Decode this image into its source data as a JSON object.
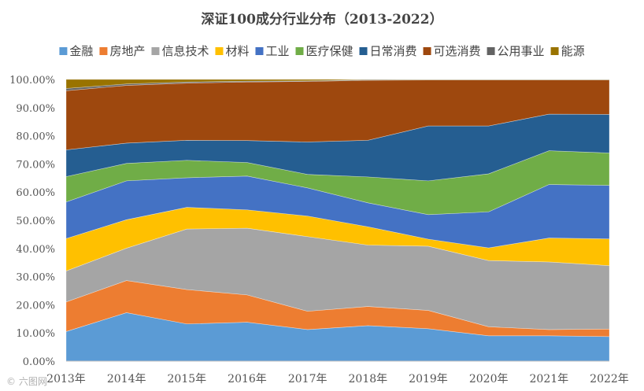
{
  "watermark": "© 六图网",
  "chart_data": {
    "type": "area",
    "stacked": true,
    "title": "深证100成分行业分布（2013-2022）",
    "categories": [
      "2013年",
      "2014年",
      "2015年",
      "2016年",
      "2017年",
      "2018年",
      "2019年",
      "2020年",
      "2021年",
      "2022年"
    ],
    "ylim": [
      0,
      1
    ],
    "yticks": [
      "0.00%",
      "10.00%",
      "20.00%",
      "30.00%",
      "40.00%",
      "50.00%",
      "60.00%",
      "70.00%",
      "80.00%",
      "90.00%",
      "100.00%"
    ],
    "grid": true,
    "legend_position": "top",
    "series": [
      {
        "name": "金融",
        "color": "#5b9bd5",
        "values": [
          0.105,
          0.172,
          0.132,
          0.138,
          0.112,
          0.126,
          0.115,
          0.09,
          0.09,
          0.087
        ]
      },
      {
        "name": "房地产",
        "color": "#ed7d31",
        "values": [
          0.105,
          0.114,
          0.122,
          0.097,
          0.065,
          0.068,
          0.065,
          0.032,
          0.022,
          0.027
        ]
      },
      {
        "name": "信息技术",
        "color": "#a5a5a5",
        "values": [
          0.11,
          0.115,
          0.215,
          0.237,
          0.265,
          0.218,
          0.228,
          0.235,
          0.24,
          0.225
        ]
      },
      {
        "name": "材料",
        "color": "#ffc000",
        "values": [
          0.115,
          0.101,
          0.077,
          0.065,
          0.073,
          0.065,
          0.025,
          0.045,
          0.085,
          0.095
        ]
      },
      {
        "name": "工业",
        "color": "#4472c4",
        "values": [
          0.13,
          0.138,
          0.105,
          0.12,
          0.1,
          0.085,
          0.087,
          0.128,
          0.19,
          0.19
        ]
      },
      {
        "name": "医疗保健",
        "color": "#70ad47",
        "values": [
          0.09,
          0.062,
          0.062,
          0.048,
          0.048,
          0.092,
          0.12,
          0.135,
          0.12,
          0.115
        ]
      },
      {
        "name": "日常消费",
        "color": "#255e91",
        "values": [
          0.095,
          0.072,
          0.071,
          0.078,
          0.115,
          0.13,
          0.195,
          0.17,
          0.13,
          0.137
        ]
      },
      {
        "name": "可选消费",
        "color": "#9e480e",
        "values": [
          0.21,
          0.205,
          0.203,
          0.208,
          0.215,
          0.213,
          0.163,
          0.163,
          0.121,
          0.122
        ]
      },
      {
        "name": "公用事业",
        "color": "#636363",
        "values": [
          0.008,
          0.005,
          0.004,
          0.003,
          0.002,
          0.002,
          0.001,
          0.001,
          0.001,
          0.001
        ]
      },
      {
        "name": "能源",
        "color": "#997300",
        "values": [
          0.032,
          0.016,
          0.009,
          0.006,
          0.005,
          0.001,
          0.001,
          0.001,
          0.001,
          0.001
        ]
      }
    ]
  }
}
